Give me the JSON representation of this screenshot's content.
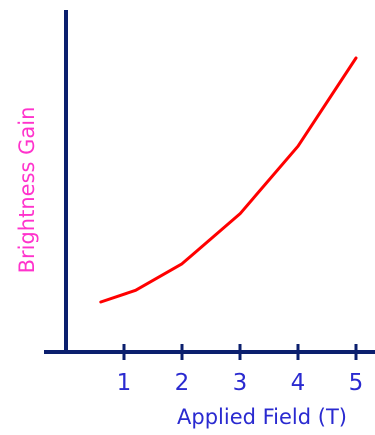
{
  "chart_data": {
    "type": "line",
    "title": "",
    "xlabel": "Applied Field (T)",
    "ylabel": "Brightness Gain",
    "xlim": [
      0,
      5.2
    ],
    "ylim": [
      0,
      1
    ],
    "xticks": [
      "1",
      "2",
      "3",
      "4",
      "5"
    ],
    "grid": false,
    "legend": "none",
    "series": [
      {
        "x": [
          0.6,
          1.2,
          2.0,
          3.0,
          4.0,
          5.0
        ],
        "y": [
          0.17,
          0.21,
          0.3,
          0.47,
          0.7,
          1.0
        ]
      }
    ],
    "colors": {
      "line": "#ff0000",
      "axis": "#0b1f6e",
      "tick_labels": "#2a2ad0",
      "xlabel": "#2a2ad0",
      "ylabel": "#ff33cc"
    }
  }
}
